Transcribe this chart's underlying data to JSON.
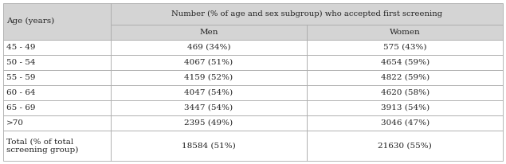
{
  "header_col": "Age (years)",
  "header_main": "Number (% of age and sex subgroup) who accepted first screening",
  "header_men": "Men",
  "header_women": "Women",
  "rows": [
    [
      "45 - 49",
      "469 (34%)",
      "575 (43%)"
    ],
    [
      "50 - 54",
      "4067 (51%)",
      "4654 (59%)"
    ],
    [
      "55 - 59",
      "4159 (52%)",
      "4822 (59%)"
    ],
    [
      "60 - 64",
      "4047 (54%)",
      "4620 (58%)"
    ],
    [
      "65 - 69",
      "3447 (54%)",
      "3913 (54%)"
    ],
    [
      ">70",
      "2395 (49%)",
      "3046 (47%)"
    ],
    [
      "Total (% of total\nscreening group)",
      "18584 (51%)",
      "21630 (55%)"
    ]
  ],
  "header_bg": "#d4d4d4",
  "row_bg": "#ffffff",
  "border_color": "#aaaaaa",
  "text_color": "#222222",
  "font_size": 7.5,
  "figsize": [
    6.35,
    2.06
  ],
  "dpi": 100
}
